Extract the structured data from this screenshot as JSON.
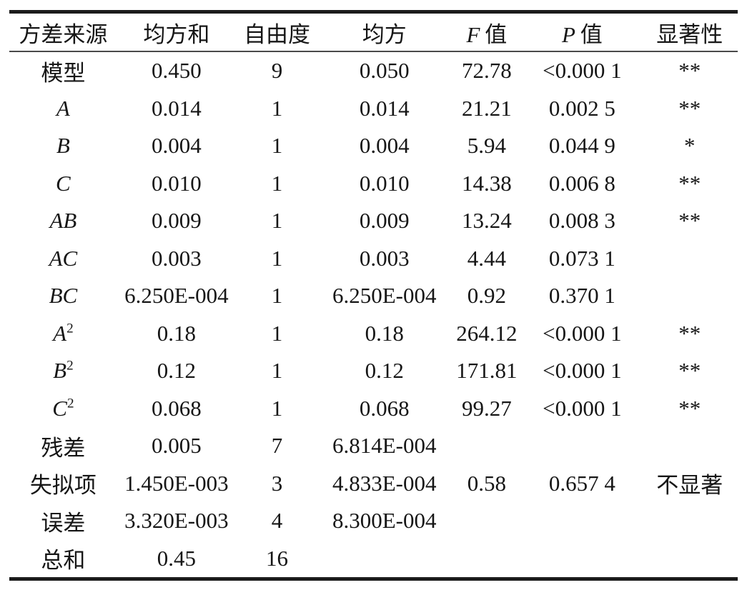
{
  "colors": {
    "background": "#ffffff",
    "text": "#161616",
    "thick_rule": "#1b1b1b",
    "thin_rule": "#4a4a4a"
  },
  "table": {
    "columns": [
      {
        "key": "source",
        "label": "方差来源",
        "math": ""
      },
      {
        "key": "ss",
        "label": "均方和",
        "math": ""
      },
      {
        "key": "df",
        "label": "自由度",
        "math": ""
      },
      {
        "key": "ms",
        "label": "均方",
        "math": ""
      },
      {
        "key": "f",
        "label": "值",
        "math": "F"
      },
      {
        "key": "p",
        "label": "值",
        "math": "P"
      },
      {
        "key": "sig",
        "label": "显著性",
        "math": ""
      }
    ],
    "column_widths_pct": [
      14.8,
      16.3,
      11.3,
      18.2,
      9.9,
      16.3,
      13.2
    ],
    "rows": [
      {
        "source": "模型",
        "math": false,
        "sup": "",
        "ss": "0.450",
        "df": "9",
        "ms": "0.050",
        "f": "72.78",
        "p": "<0.000 1",
        "sig": "**"
      },
      {
        "source": "A",
        "math": true,
        "sup": "",
        "ss": "0.014",
        "df": "1",
        "ms": "0.014",
        "f": "21.21",
        "p": "0.002 5",
        "sig": "**"
      },
      {
        "source": "B",
        "math": true,
        "sup": "",
        "ss": "0.004",
        "df": "1",
        "ms": "0.004",
        "f": "5.94",
        "p": "0.044 9",
        "sig": "*"
      },
      {
        "source": "C",
        "math": true,
        "sup": "",
        "ss": "0.010",
        "df": "1",
        "ms": "0.010",
        "f": "14.38",
        "p": "0.006 8",
        "sig": "**"
      },
      {
        "source": "AB",
        "math": true,
        "sup": "",
        "ss": "0.009",
        "df": "1",
        "ms": "0.009",
        "f": "13.24",
        "p": "0.008 3",
        "sig": "**"
      },
      {
        "source": "AC",
        "math": true,
        "sup": "",
        "ss": "0.003",
        "df": "1",
        "ms": "0.003",
        "f": "4.44",
        "p": "0.073 1",
        "sig": ""
      },
      {
        "source": "BC",
        "math": true,
        "sup": "",
        "ss": "6.250E-004",
        "df": "1",
        "ms": "6.250E-004",
        "f": "0.92",
        "p": "0.370 1",
        "sig": ""
      },
      {
        "source": "A",
        "math": true,
        "sup": "2",
        "ss": "0.18",
        "df": "1",
        "ms": "0.18",
        "f": "264.12",
        "p": "<0.000 1",
        "sig": "**"
      },
      {
        "source": "B",
        "math": true,
        "sup": "2",
        "ss": "0.12",
        "df": "1",
        "ms": "0.12",
        "f": "171.81",
        "p": "<0.000 1",
        "sig": "**"
      },
      {
        "source": "C",
        "math": true,
        "sup": "2",
        "ss": "0.068",
        "df": "1",
        "ms": "0.068",
        "f": "99.27",
        "p": "<0.000 1",
        "sig": "**"
      },
      {
        "source": "残差",
        "math": false,
        "sup": "",
        "ss": "0.005",
        "df": "7",
        "ms": "6.814E-004",
        "f": "",
        "p": "",
        "sig": ""
      },
      {
        "source": "失拟项",
        "math": false,
        "sup": "",
        "ss": "1.450E-003",
        "df": "3",
        "ms": "4.833E-004",
        "f": "0.58",
        "p": "0.657 4",
        "sig": "不显著"
      },
      {
        "source": "误差",
        "math": false,
        "sup": "",
        "ss": "3.320E-003",
        "df": "4",
        "ms": "8.300E-004",
        "f": "",
        "p": "",
        "sig": ""
      },
      {
        "source": "总和",
        "math": false,
        "sup": "",
        "ss": "0.45",
        "df": "16",
        "ms": "",
        "f": "",
        "p": "",
        "sig": ""
      }
    ]
  }
}
